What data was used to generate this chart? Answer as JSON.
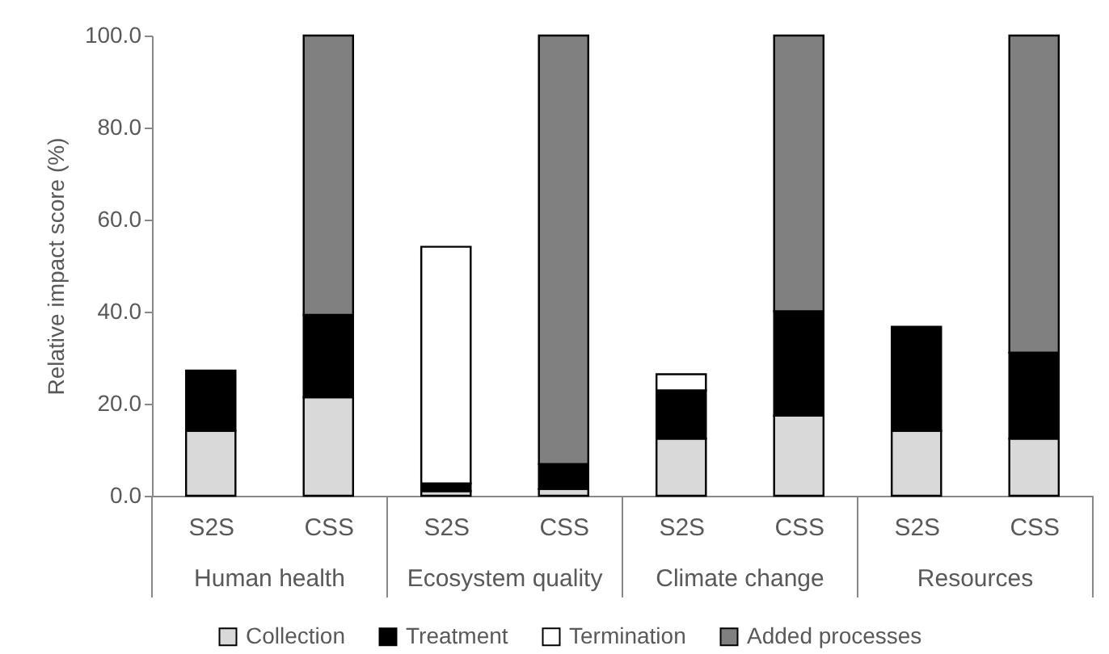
{
  "chart_data": {
    "type": "bar",
    "stacked": true,
    "categories": [
      "S2S",
      "CSS",
      "S2S",
      "CSS",
      "S2S",
      "CSS",
      "S2S",
      "CSS"
    ],
    "series": [
      {
        "name": "Collection",
        "color": "#d9d9d9",
        "values": [
          14.1,
          21.4,
          1.0,
          1.5,
          12.4,
          17.4,
          14.1,
          12.4
        ]
      },
      {
        "name": "Treatment",
        "color": "#000000",
        "values": [
          13.1,
          17.9,
          1.7,
          5.4,
          10.5,
          22.7,
          22.6,
          18.7
        ]
      },
      {
        "name": "Termination",
        "color": "#ffffff",
        "values": [
          null,
          null,
          51.4,
          null,
          3.5,
          null,
          null,
          null
        ]
      },
      {
        "name": "Added processes",
        "color": "#808080",
        "values": [
          null,
          60.7,
          null,
          93.1,
          null,
          59.9,
          null,
          68.9
        ]
      }
    ],
    "ylabel": "Relative impact score (%)",
    "ylim": [
      0,
      100
    ],
    "yticks": [
      {
        "value": 0,
        "label": "0.0"
      },
      {
        "value": 20,
        "label": "20.0"
      },
      {
        "value": 40,
        "label": "40.0"
      },
      {
        "value": 60,
        "label": "60.0"
      },
      {
        "value": 80,
        "label": "80.0"
      },
      {
        "value": 100,
        "label": "100.0"
      }
    ],
    "annotations": [
      "Human health",
      "Ecosystem quality",
      "Climate change",
      "Resources"
    ],
    "grid": false,
    "legend": "bottom"
  }
}
